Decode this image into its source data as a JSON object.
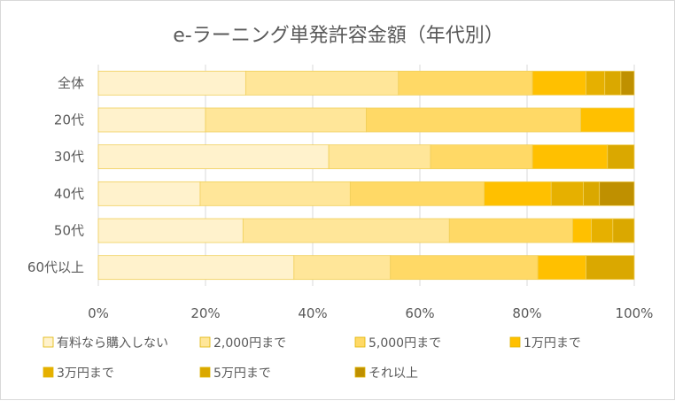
{
  "chart_data": {
    "type": "bar",
    "orientation": "horizontal",
    "stacked": "percent",
    "title": "e-ラーニング単発許容金額（年代別）",
    "categories": [
      "全体",
      "20代",
      "30代",
      "40代",
      "50代",
      "60代以上"
    ],
    "series": [
      {
        "name": "有料なら購入しない",
        "color": "#fff2cc",
        "values": [
          27.5,
          20.0,
          43.0,
          19.0,
          27.0,
          36.5
        ]
      },
      {
        "name": "2,000円まで",
        "color": "#ffe699",
        "values": [
          28.5,
          30.0,
          19.0,
          28.0,
          38.5,
          18.0
        ]
      },
      {
        "name": "5,000円まで",
        "color": "#ffd966",
        "values": [
          25.0,
          40.0,
          19.0,
          25.0,
          23.0,
          27.5
        ]
      },
      {
        "name": "1万円まで",
        "color": "#ffc000",
        "values": [
          10.0,
          10.0,
          14.0,
          12.5,
          3.5,
          9.0
        ]
      },
      {
        "name": "3万円まで",
        "color": "#e6b000",
        "values": [
          3.5,
          0.0,
          0.0,
          6.0,
          4.0,
          0.0
        ]
      },
      {
        "name": "5万円まで",
        "color": "#daa800",
        "values": [
          3.0,
          0.0,
          5.0,
          3.0,
          4.0,
          9.0
        ]
      },
      {
        "name": "それ以上",
        "color": "#bf9000",
        "values": [
          2.5,
          0.0,
          0.0,
          6.5,
          0.0,
          0.0
        ]
      }
    ],
    "xlim": [
      0,
      100
    ],
    "xticks": [
      "0%",
      "20%",
      "40%",
      "60%",
      "80%",
      "100%"
    ],
    "grid": true,
    "legend_position": "bottom"
  }
}
